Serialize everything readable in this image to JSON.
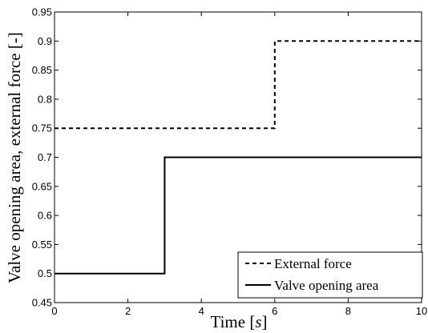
{
  "chart_data": {
    "type": "line",
    "xlabel_prefix": "Time [",
    "xlabel_var": "s",
    "xlabel_suffix": "]",
    "ylabel": "Valve opening area, external force [-]",
    "xlim": [
      0,
      10
    ],
    "ylim": [
      0.45,
      0.95
    ],
    "x_ticks": [
      0,
      2,
      4,
      6,
      8,
      10
    ],
    "y_ticks": [
      0.45,
      0.5,
      0.55,
      0.6,
      0.65,
      0.7,
      0.75,
      0.8,
      0.85,
      0.9,
      0.95
    ],
    "grid": false,
    "legend_position": "bottom-right",
    "series": [
      {
        "name": "External force",
        "style": "dashed",
        "color": "#000000",
        "x": [
          0,
          6,
          6,
          10
        ],
        "y": [
          0.75,
          0.75,
          0.9,
          0.9
        ]
      },
      {
        "name": "Valve opening area",
        "style": "solid",
        "color": "#000000",
        "x": [
          0,
          3,
          3,
          10
        ],
        "y": [
          0.5,
          0.5,
          0.7,
          0.7
        ]
      }
    ]
  }
}
